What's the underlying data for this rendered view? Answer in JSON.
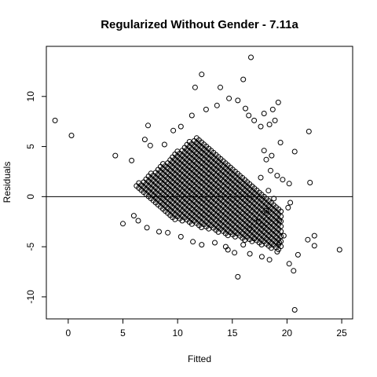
{
  "chart_data": {
    "type": "scatter",
    "title": "Regularized Without Gender - 7.11a",
    "xlabel": "Fitted",
    "ylabel": "Residuals",
    "xlim": [
      -2,
      26
    ],
    "ylim": [
      -12.2,
      15
    ],
    "xticks": [
      0,
      5,
      10,
      15,
      20,
      25
    ],
    "yticks": [
      -10,
      -5,
      0,
      5,
      10
    ],
    "hline": 0,
    "marker": "open-circle",
    "grid": false,
    "legend": "none",
    "series": [
      {
        "points": [
          [
            -1.2,
            7.6
          ],
          [
            0.3,
            6.1
          ],
          [
            4.3,
            4.1
          ],
          [
            5.0,
            -2.7
          ],
          [
            5.8,
            3.6
          ],
          [
            16.7,
            13.9
          ],
          [
            16.0,
            11.7
          ],
          [
            12.2,
            12.2
          ],
          [
            11.6,
            10.9
          ],
          [
            13.9,
            10.9
          ],
          [
            19.2,
            9.4
          ],
          [
            20.7,
            4.5
          ],
          [
            22.0,
            6.5
          ],
          [
            22.1,
            1.4
          ],
          [
            21.9,
            -4.3
          ],
          [
            22.5,
            -3.9
          ],
          [
            22.5,
            -4.9
          ],
          [
            24.8,
            -5.3
          ],
          [
            21.0,
            -5.8
          ],
          [
            20.2,
            -6.7
          ],
          [
            20.6,
            -7.4
          ],
          [
            20.7,
            -11.3
          ],
          [
            15.5,
            -8.0
          ],
          [
            20.2,
            1.3
          ],
          [
            19.4,
            5.4
          ],
          [
            18.4,
            7.2
          ],
          [
            18.9,
            7.6
          ],
          [
            17.6,
            7.0
          ],
          [
            17.0,
            7.6
          ],
          [
            16.5,
            8.1
          ],
          [
            7.3,
            7.1
          ],
          [
            7.0,
            5.7
          ],
          [
            7.5,
            5.1
          ],
          [
            17.9,
            8.3
          ],
          [
            18.7,
            8.7
          ],
          [
            20.1,
            -1.1
          ],
          [
            20.3,
            -0.6
          ],
          [
            19.7,
            -3.9
          ],
          [
            19.3,
            -4.6
          ],
          [
            18.4,
            -6.3
          ],
          [
            19.1,
            -5.5
          ],
          [
            17.7,
            -6.0
          ],
          [
            16.6,
            -5.7
          ],
          [
            18.6,
            4.1
          ],
          [
            18.1,
            3.7
          ],
          [
            17.9,
            4.6
          ],
          [
            19.1,
            2.1
          ],
          [
            19.6,
            1.7
          ],
          [
            18.5,
            2.6
          ],
          [
            18.3,
            0.6
          ],
          [
            18.8,
            -0.2
          ],
          [
            17.6,
            1.9
          ],
          [
            18.1,
            -1.4
          ],
          [
            19.3,
            -2.4
          ],
          [
            17.9,
            -3.0
          ],
          [
            17.0,
            -4.2
          ],
          [
            16.6,
            -3.2
          ],
          [
            17.4,
            -2.5
          ],
          [
            16.0,
            -4.8
          ],
          [
            15.2,
            -5.6
          ],
          [
            14.6,
            -5.3
          ],
          [
            6.0,
            -1.9
          ],
          [
            6.4,
            -2.4
          ],
          [
            7.2,
            -3.1
          ],
          [
            8.3,
            -3.5
          ],
          [
            9.1,
            -3.6
          ],
          [
            10.3,
            -4.0
          ],
          [
            11.4,
            -4.5
          ],
          [
            12.2,
            -4.8
          ],
          [
            13.4,
            -4.6
          ],
          [
            14.4,
            -5.0
          ],
          [
            8.8,
            5.2
          ],
          [
            9.6,
            6.6
          ],
          [
            10.3,
            7.0
          ],
          [
            11.3,
            8.1
          ],
          [
            12.6,
            8.7
          ],
          [
            13.6,
            9.1
          ],
          [
            14.7,
            9.8
          ],
          [
            15.5,
            9.6
          ],
          [
            16.2,
            8.8
          ]
        ]
      }
    ]
  }
}
